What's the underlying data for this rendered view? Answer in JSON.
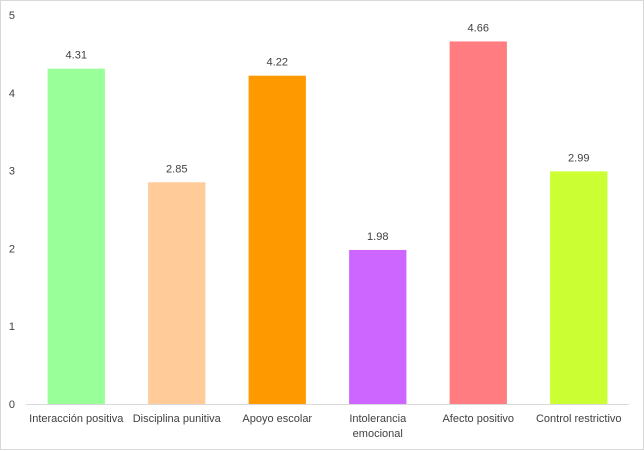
{
  "chart_data": {
    "type": "bar",
    "categories": [
      [
        "Interacción positiva"
      ],
      [
        "Disciplina punitiva"
      ],
      [
        "Apoyo escolar"
      ],
      [
        "Intolerancia",
        "emocional"
      ],
      [
        "Afecto positivo"
      ],
      [
        "Control restrictivo"
      ]
    ],
    "values": [
      4.31,
      2.85,
      4.22,
      1.98,
      4.66,
      2.99
    ],
    "value_labels": [
      "4.31",
      "2.85",
      "4.22",
      "1.98",
      "4.66",
      "2.99"
    ],
    "colors": [
      "#99ff99",
      "#ffcc99",
      "#ff9900",
      "#cc66ff",
      "#ff7c80",
      "#ccff33"
    ],
    "title": "",
    "xlabel": "",
    "ylabel": "",
    "ylim": [
      0,
      5
    ],
    "yticks": [
      "0",
      "1",
      "2",
      "3",
      "4",
      "5"
    ],
    "grid": false,
    "legend": "none"
  }
}
